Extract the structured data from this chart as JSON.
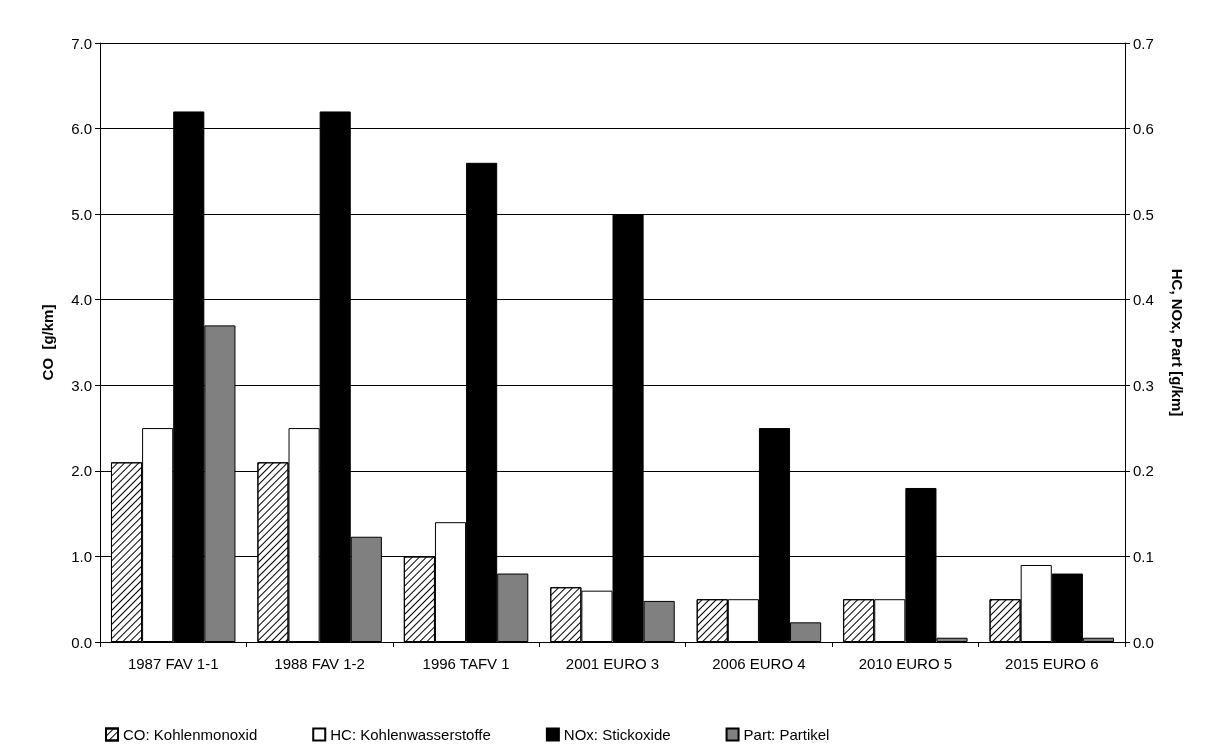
{
  "chart_data": {
    "type": "bar",
    "ylabel": "CO  [g/km]",
    "y2label": "HC, NOx, Part [g/km]",
    "categories": [
      "1987 FAV 1-1",
      "1988 FAV 1-2",
      "1996 TAFV 1",
      "2001 EURO 3",
      "2006 EURO 4",
      "2010 EURO 5",
      "2015 EURO 6"
    ],
    "series": [
      {
        "name": "CO: Kohlenmonoxid",
        "color": "#ffffff",
        "values": [
          2.1,
          2.1,
          1.0,
          0.64,
          0.5,
          0.5,
          0.5
        ]
      },
      {
        "name": "HC: Kohlenwasserstoffe",
        "color": "#ffffff",
        "axis": "y2",
        "values": [
          0.25,
          0.25,
          0.14,
          0.06,
          0.05,
          0.05,
          0.09
        ]
      },
      {
        "name": "NOx: Stickoxide",
        "color": "#000000",
        "axis": "y2",
        "values": [
          0.62,
          0.62,
          0.56,
          0.5,
          0.25,
          0.18,
          0.08
        ]
      },
      {
        "name": "Part: Partikel",
        "color": "#808080",
        "axis": "y2",
        "values": [
          0.37,
          0.123,
          0.08,
          0.048,
          0.023,
          0.005,
          0.005
        ]
      }
    ],
    "ylim": [
      0,
      7
    ],
    "yticks": [
      {
        "value": 0,
        "label": "0.0"
      },
      {
        "value": 1,
        "label": "1.0"
      },
      {
        "value": 2,
        "label": "2.0"
      },
      {
        "value": 3,
        "label": "3.0"
      },
      {
        "value": 4,
        "label": "4.0"
      },
      {
        "value": 5,
        "label": "5.0"
      },
      {
        "value": 6,
        "label": "6.0"
      },
      {
        "value": 7,
        "label": "7.0"
      }
    ],
    "y2lim": [
      0,
      0.7
    ],
    "y2ticks": [
      {
        "value": 0,
        "label": "0.0"
      },
      0.1,
      0.2,
      0.3,
      0.4,
      0.5,
      0.6,
      0.7
    ],
    "grid": "y",
    "legend": "bottom"
  }
}
